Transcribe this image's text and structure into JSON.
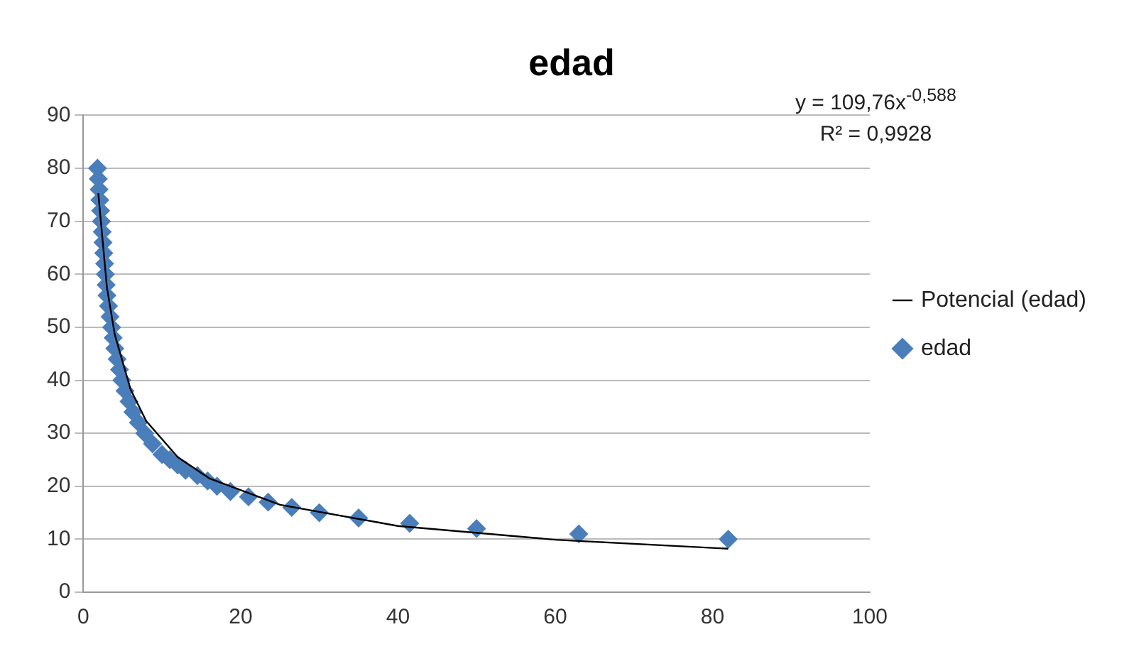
{
  "chart_data": {
    "type": "scatter",
    "title": "edad",
    "xlim": [
      0,
      100
    ],
    "xticks": [
      0,
      20,
      40,
      60,
      80,
      100
    ],
    "ylim": [
      0,
      90
    ],
    "yticks": [
      0,
      10,
      20,
      30,
      40,
      50,
      60,
      70,
      80,
      90
    ],
    "grid": "y",
    "legend": "right",
    "marker": "diamond",
    "annotations": [
      "y = 109,76x$^{-0,588}$",
      "R² = 0,9928"
    ],
    "series": [
      {
        "name": "edad",
        "type": "scatter",
        "color": "#4a7ebb",
        "x": [
          1.8,
          1.9,
          2.0,
          2.1,
          2.2,
          2.3,
          2.4,
          2.5,
          2.6,
          2.7,
          2.8,
          2.9,
          3.0,
          3.2,
          3.4,
          3.6,
          3.8,
          4.0,
          4.3,
          4.6,
          4.9,
          5.3,
          5.8,
          6.3,
          7.0,
          7.8,
          8.8,
          10,
          11,
          12,
          13,
          14.5,
          15.8,
          17,
          18.7,
          21,
          23.5,
          26.5,
          30,
          35,
          41.5,
          50,
          63,
          82
        ],
        "values": [
          80,
          78,
          76,
          74,
          72,
          70,
          68,
          66,
          64,
          62,
          60,
          58,
          56,
          54,
          52,
          50,
          48,
          46,
          44,
          42,
          40,
          38,
          36,
          34,
          32,
          30,
          28,
          26,
          25,
          24,
          23,
          22,
          21,
          20,
          19,
          18,
          17,
          16,
          15,
          14,
          13,
          12,
          11,
          10
        ]
      },
      {
        "name": "Potencial (edad)",
        "type": "line",
        "color": "#000000",
        "marker": "none",
        "x": [
          1.9,
          3,
          4,
          6,
          8,
          12,
          16,
          25,
          40,
          60,
          82
        ],
        "values": [
          75.3,
          57.5,
          48.6,
          38.3,
          32.3,
          25.5,
          21.5,
          16.5,
          12.5,
          9.9,
          8.2
        ]
      }
    ]
  }
}
